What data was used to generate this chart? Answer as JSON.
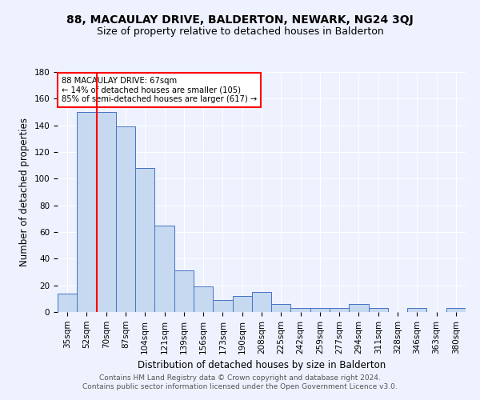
{
  "title": "88, MACAULAY DRIVE, BALDERTON, NEWARK, NG24 3QJ",
  "subtitle": "Size of property relative to detached houses in Balderton",
  "xlabel": "Distribution of detached houses by size in Balderton",
  "ylabel": "Number of detached properties",
  "categories": [
    "35sqm",
    "52sqm",
    "70sqm",
    "87sqm",
    "104sqm",
    "121sqm",
    "139sqm",
    "156sqm",
    "173sqm",
    "190sqm",
    "208sqm",
    "225sqm",
    "242sqm",
    "259sqm",
    "277sqm",
    "294sqm",
    "311sqm",
    "328sqm",
    "346sqm",
    "363sqm",
    "380sqm"
  ],
  "values": [
    14,
    150,
    150,
    139,
    108,
    65,
    31,
    19,
    9,
    12,
    15,
    6,
    3,
    3,
    3,
    6,
    3,
    0,
    3,
    0,
    3
  ],
  "bar_color": "#c6d9f0",
  "bar_edge_color": "#4472c4",
  "red_line_x": 1.5,
  "annotation_text": "88 MACAULAY DRIVE: 67sqm\n← 14% of detached houses are smaller (105)\n85% of semi-detached houses are larger (617) →",
  "annotation_box_color": "white",
  "annotation_box_edge_color": "red",
  "ylim": [
    0,
    180
  ],
  "yticks": [
    0,
    20,
    40,
    60,
    80,
    100,
    120,
    140,
    160,
    180
  ],
  "footer_line1": "Contains HM Land Registry data © Crown copyright and database right 2024.",
  "footer_line2": "Contains public sector information licensed under the Open Government Licence v3.0.",
  "bg_color": "#eef2ff",
  "grid_color": "white",
  "title_fontsize": 10,
  "subtitle_fontsize": 9,
  "axis_label_fontsize": 8.5,
  "tick_fontsize": 7.5,
  "footer_fontsize": 6.5
}
